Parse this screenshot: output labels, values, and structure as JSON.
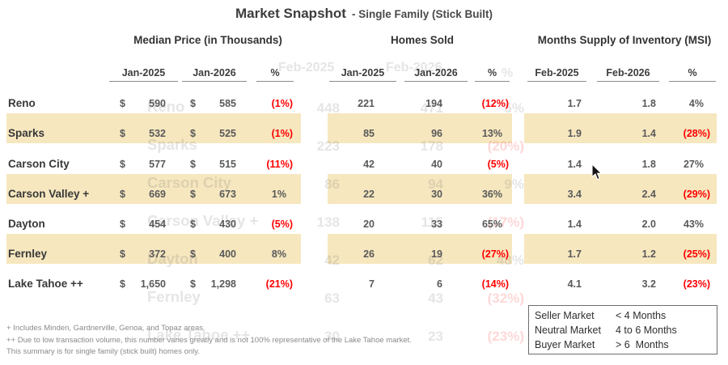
{
  "title": {
    "main": "Market Snapshot",
    "sub": "- Single Family (Stick Built)"
  },
  "currency_symbol": "$",
  "chart_data": {
    "type": "table",
    "title": "Market Snapshot - Single Family (Stick Built)",
    "groups": [
      {
        "label": "Median Price (in Thousands)",
        "sub_columns": [
          "Jan-2025",
          "Jan-2026",
          "%"
        ]
      },
      {
        "label": "Homes Sold",
        "sub_columns": [
          "Jan-2025",
          "Jan-2026",
          "%"
        ]
      },
      {
        "label": "Months Supply of Inventory (MSI)",
        "sub_columns": [
          "Feb-2025",
          "Feb-2026",
          "%"
        ]
      }
    ],
    "rows": [
      {
        "region": "Reno",
        "values": [
          "590",
          "585",
          "(1%)",
          "221",
          "194",
          "(12%)",
          "1.7",
          "1.8",
          "4%"
        ]
      },
      {
        "region": "Sparks",
        "values": [
          "532",
          "525",
          "(1%)",
          "85",
          "96",
          "13%",
          "1.9",
          "1.4",
          "(28%)"
        ]
      },
      {
        "region": "Carson City",
        "values": [
          "577",
          "515",
          "(11%)",
          "42",
          "40",
          "(5%)",
          "1.4",
          "1.8",
          "27%"
        ]
      },
      {
        "region": "Carson Valley +",
        "values": [
          "669",
          "673",
          "1%",
          "22",
          "30",
          "36%",
          "3.4",
          "2.4",
          "(29%)"
        ]
      },
      {
        "region": "Dayton",
        "values": [
          "454",
          "430",
          "(5%)",
          "20",
          "33",
          "65%",
          "1.4",
          "2.0",
          "43%"
        ]
      },
      {
        "region": "Fernley",
        "values": [
          "372",
          "400",
          "8%",
          "26",
          "19",
          "(27%)",
          "1.7",
          "1.2",
          "(25%)"
        ]
      },
      {
        "region": "Lake Tahoe ++",
        "values": [
          "1,650",
          "1,298",
          "(21%)",
          "7",
          "6",
          "(14%)",
          "4.1",
          "3.2",
          "(23%)"
        ]
      }
    ]
  },
  "ghost_overlay": {
    "header_cols": [
      "Feb-2025",
      "Feb-2026",
      "%"
    ],
    "rows": [
      {
        "label": "Reno",
        "v1": "448",
        "v2": "471",
        "pct": "5%"
      },
      {
        "label": "Sparks",
        "v1": "223",
        "v2": "178",
        "pct": "(20%)"
      },
      {
        "label": "Carson City",
        "v1": "86",
        "v2": "94",
        "pct": "9%"
      },
      {
        "label": "Carson Valley +",
        "v1": "138",
        "v2": "115",
        "pct": "(17%)"
      },
      {
        "label": "Dayton",
        "v1": "42",
        "v2": "62",
        "pct": "48%"
      },
      {
        "label": "Fernley",
        "v1": "63",
        "v2": "43",
        "pct": "(32%)"
      },
      {
        "label": "Lake Tahoe ++",
        "v1": "30",
        "v2": "23",
        "pct": "(23%)"
      }
    ]
  },
  "legend": {
    "rows": [
      {
        "label": "Seller Market",
        "value": "< 4 Months"
      },
      {
        "label": "Neutral Market",
        "value": "4 to 6 Months"
      },
      {
        "label": "Buyer Market",
        "value": "> 6  Months"
      }
    ]
  },
  "footnotes": [
    "+ Includes Minden, Gardnerville, Genoa, and Topaz areas",
    "++ Due to low transaction volume, this number varies greatly and is not 100% representative of the Lake Tahoe market.",
    "This summary is for single family (stick built) homes only."
  ],
  "colors": {
    "highlight_band": "#f6e7bf",
    "negative": "#ff0000",
    "text_dark": "#3d3d3d",
    "text_value": "#595959"
  }
}
